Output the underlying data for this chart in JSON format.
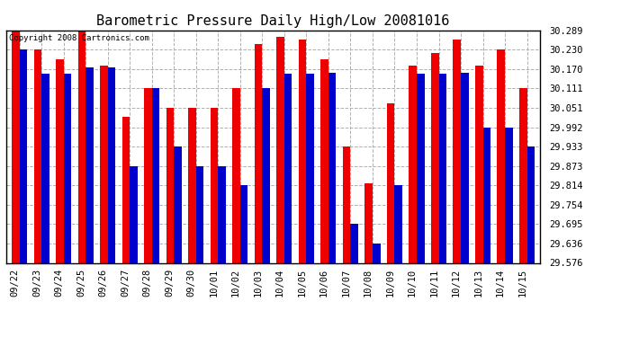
{
  "title": "Barometric Pressure Daily High/Low 20081016",
  "copyright_text": "Copyright 2008 Cartronics.com",
  "categories": [
    "09/22",
    "09/23",
    "09/24",
    "09/25",
    "09/26",
    "09/27",
    "09/28",
    "09/29",
    "09/30",
    "10/01",
    "10/02",
    "10/03",
    "10/04",
    "10/05",
    "10/06",
    "10/07",
    "10/08",
    "10/09",
    "10/10",
    "10/11",
    "10/12",
    "10/13",
    "10/14",
    "10/15"
  ],
  "highs": [
    30.289,
    30.23,
    30.2,
    30.289,
    30.18,
    30.025,
    30.111,
    30.051,
    30.051,
    30.051,
    30.111,
    30.248,
    30.27,
    30.26,
    30.2,
    29.933,
    29.82,
    30.065,
    30.18,
    30.22,
    30.262,
    30.18,
    30.23,
    30.111
  ],
  "lows": [
    30.23,
    30.155,
    30.155,
    30.175,
    30.175,
    29.873,
    30.111,
    29.933,
    29.873,
    29.873,
    29.814,
    30.111,
    30.155,
    30.155,
    30.16,
    29.695,
    29.636,
    29.814,
    30.155,
    30.155,
    30.16,
    29.992,
    29.992,
    29.933
  ],
  "high_color": "#ee0000",
  "low_color": "#0000cc",
  "background_color": "#ffffff",
  "plot_bg_color": "#ffffff",
  "grid_color": "#b0b0b0",
  "ytick_values": [
    29.576,
    29.636,
    29.695,
    29.754,
    29.814,
    29.873,
    29.933,
    29.992,
    30.051,
    30.111,
    30.17,
    30.23,
    30.289
  ],
  "ytick_labels": [
    "29.576",
    "29.636",
    "29.695",
    "29.754",
    "29.814",
    "29.873",
    "29.933",
    "29.992",
    "30.051",
    "30.111",
    "30.170",
    "30.230",
    "30.289"
  ],
  "ymin": 29.576,
  "ymax": 30.289,
  "title_fontsize": 11,
  "tick_fontsize": 7.5,
  "bar_width": 0.35,
  "copyright_fontsize": 6.5
}
